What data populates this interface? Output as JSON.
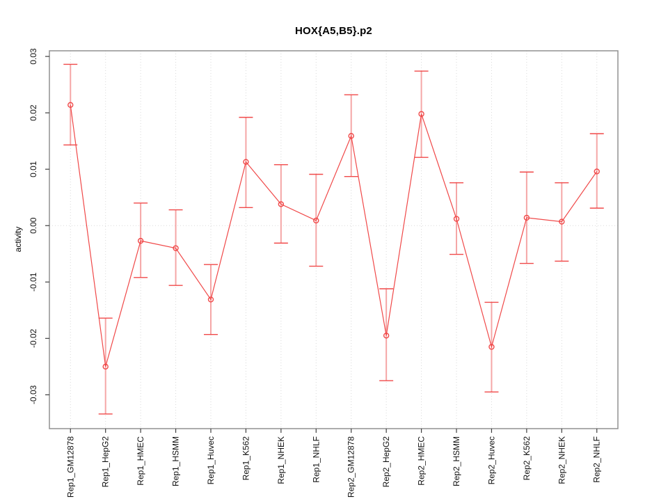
{
  "chart_data": {
    "type": "line",
    "title": "HOX{A5,B5}.p2",
    "xlabel": "",
    "ylabel": "activity",
    "legend": "none",
    "categories": [
      "Rep1_GM12878",
      "Rep1_HepG2",
      "Rep1_HMEC",
      "Rep1_HSMM",
      "Rep1_Huvec",
      "Rep1_K562",
      "Rep1_NHEK",
      "Rep1_NHLF",
      "Rep2_GM12878",
      "Rep2_HepG2",
      "Rep2_HMEC",
      "Rep2_HSMM",
      "Rep2_Huvec",
      "Rep2_K562",
      "Rep2_NHEK",
      "Rep2_NHLF"
    ],
    "series": [
      {
        "name": "activity",
        "marker": "open-circle",
        "values": [
          0.0214,
          -0.025,
          -0.0027,
          -0.004,
          -0.0131,
          0.0113,
          0.0038,
          0.0009,
          0.0159,
          -0.0195,
          0.0198,
          0.0012,
          -0.0215,
          0.0014,
          0.0007,
          0.0096
        ],
        "error_upper": [
          0.0286,
          -0.0164,
          0.004,
          0.0028,
          -0.0069,
          0.0192,
          0.0108,
          0.0091,
          0.0232,
          -0.0112,
          0.0274,
          0.0076,
          -0.0136,
          0.0095,
          0.0076,
          0.0163
        ],
        "error_lower": [
          0.0143,
          -0.0334,
          -0.0092,
          -0.0106,
          -0.0193,
          0.0032,
          -0.0031,
          -0.0072,
          0.0087,
          -0.0275,
          0.0121,
          -0.0051,
          -0.0295,
          -0.0067,
          -0.0063,
          0.0031
        ]
      }
    ],
    "ylim": [
      -0.036,
      0.031
    ],
    "y_tick_values": [
      -0.03,
      -0.02,
      -0.01,
      0.0,
      0.01,
      0.02,
      0.03
    ],
    "y_tick_labels": [
      "-0.03",
      "-0.02",
      "-0.01",
      "0.00",
      "0.01",
      "0.02",
      "0.03"
    ],
    "grid": {
      "vertical_lines": "dotted at every category",
      "horizontal_zero_line": "dotted",
      "style": "dotted"
    },
    "tick_label_orientation": "vertical",
    "colors": {
      "series": "#f04848",
      "error_stem": "#f5a6a6",
      "grid": "#d8d8d8",
      "box": "#909090",
      "tick": "#3f3f3f",
      "label": "#111111",
      "background": "#ffffff"
    }
  }
}
